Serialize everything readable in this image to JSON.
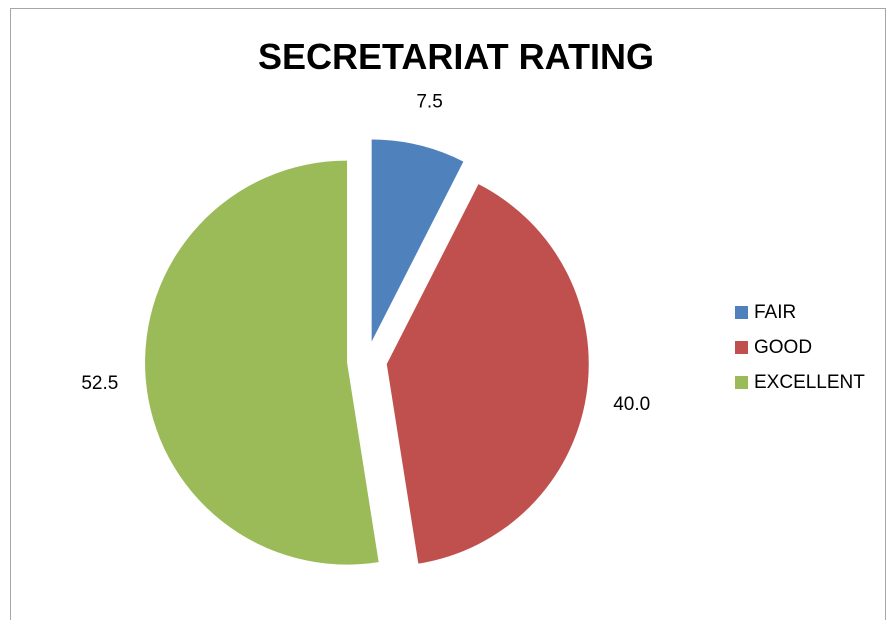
{
  "chart_data": {
    "type": "pie",
    "title": "SECRETARIAT RATING",
    "categories": [
      "FAIR",
      "GOOD",
      "EXCELLENT"
    ],
    "values": [
      7.5,
      40.0,
      52.5
    ],
    "data_labels": [
      "7.5",
      "40.0",
      "52.5"
    ],
    "colors": [
      "#4f81bd",
      "#c0504d",
      "#9bbb59"
    ],
    "exploded": true,
    "legend_position": "right"
  }
}
